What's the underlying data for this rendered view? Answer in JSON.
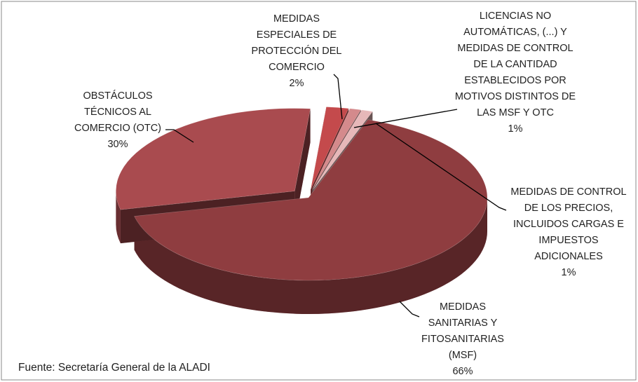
{
  "chart_data": {
    "type": "pie",
    "categories": [
      "MEDIDAS ESPECIALES DE PROTECCIÓN DEL COMERCIO",
      "LICENCIAS NO AUTOMÁTICAS, (...) Y MEDIDAS DE CONTROL DE LA CANTIDAD ESTABLECIDOS POR MOTIVOS DISTINTOS DE LAS MSF Y OTC",
      "MEDIDAS DE CONTROL DE LOS PRECIOS, INCLUIDOS CARGAS E IMPUESTOS ADICIONALES",
      "MEDIDAS SANITARIAS Y FITOSANITARIAS (MSF)",
      "OBSTÁCULOS TÉCNICOS AL COMERCIO (OTC)"
    ],
    "values": [
      2,
      1,
      1,
      66,
      30
    ],
    "value_labels": [
      "2%",
      "1%",
      "1%",
      "66%",
      "30%"
    ],
    "colors": [
      "#c44a4c",
      "#d48a8c",
      "#e6b8b9",
      "#8f3d40",
      "#a94b4f"
    ],
    "source": "Fuente: Secretaría General de la ALADI"
  }
}
